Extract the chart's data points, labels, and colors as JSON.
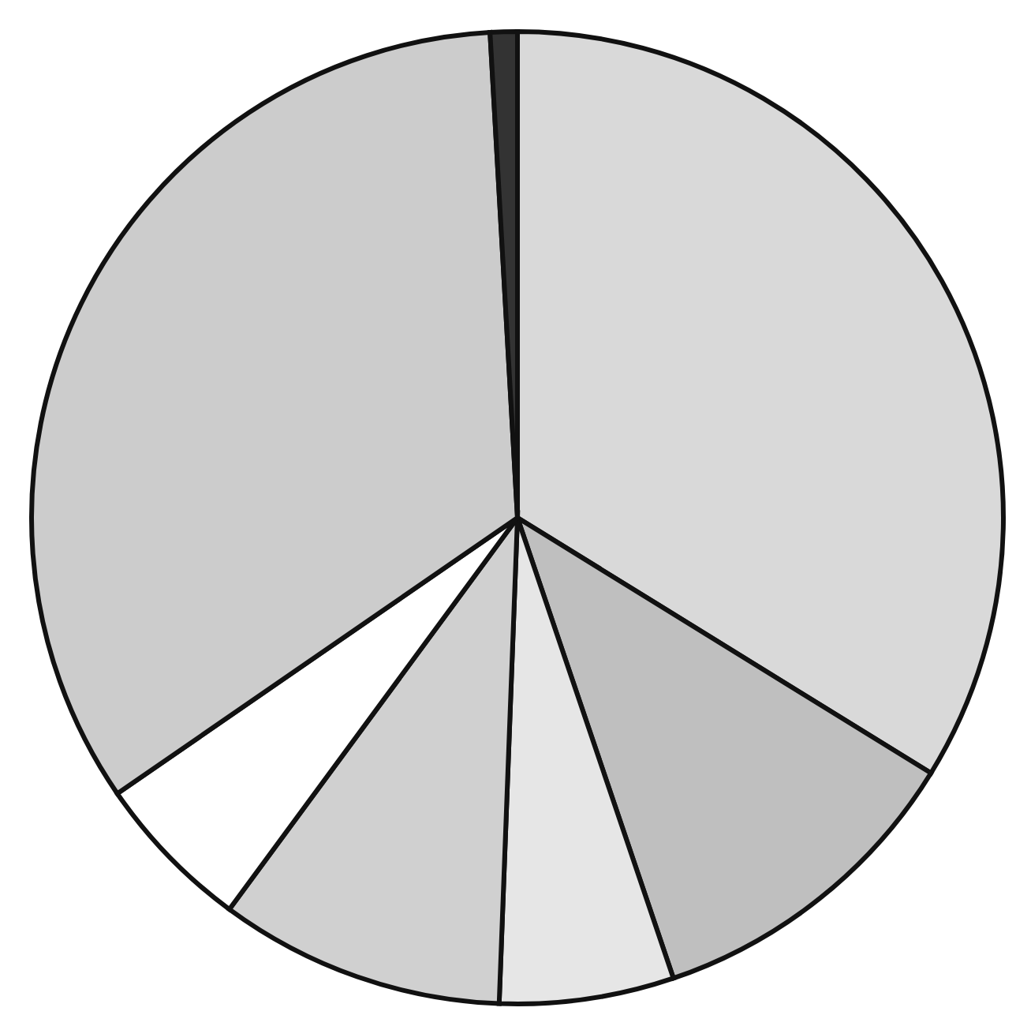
{
  "chart_data": {
    "type": "pie",
    "categories": [
      null,
      null,
      null,
      null,
      null,
      null,
      null
    ],
    "values": [
      33.8,
      11.0,
      5.8,
      9.5,
      5.3,
      33.7,
      0.9
    ],
    "colors": [
      "#d9d9d9",
      "#bfbfbf",
      "#e6e6e6",
      "#d0d0d0",
      "#ffffff",
      "#cccccc",
      "#333333"
    ]
  }
}
